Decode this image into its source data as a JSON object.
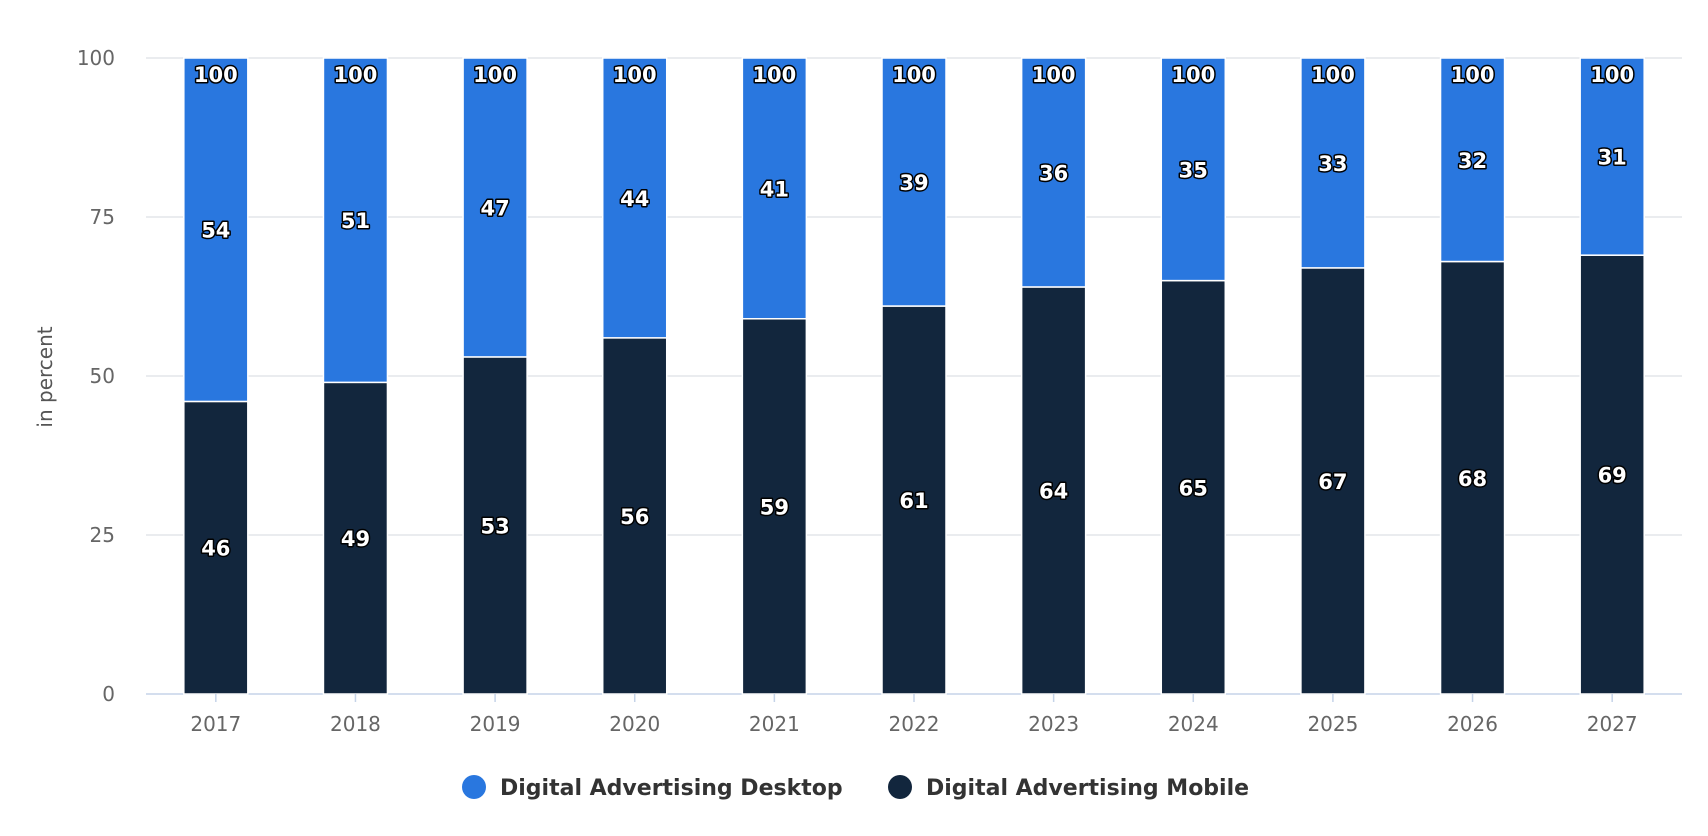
{
  "chart_data": {
    "type": "bar",
    "stacked": true,
    "categories": [
      "2017",
      "2018",
      "2019",
      "2020",
      "2021",
      "2022",
      "2023",
      "2024",
      "2025",
      "2026",
      "2027"
    ],
    "series": [
      {
        "name": "Digital Advertising Mobile",
        "color": "#12263d",
        "values": [
          46,
          49,
          53,
          56,
          59,
          61,
          64,
          65,
          67,
          68,
          69
        ]
      },
      {
        "name": "Digital Advertising Desktop",
        "color": "#2977df",
        "values": [
          54,
          51,
          47,
          44,
          41,
          39,
          36,
          35,
          33,
          32,
          31
        ]
      }
    ],
    "total_labels": [
      "100",
      "100",
      "100",
      "100",
      "100",
      "100",
      "100",
      "100",
      "100",
      "100",
      "100"
    ],
    "title": "",
    "xlabel": "",
    "ylabel": "in percent",
    "ylim": [
      0,
      100
    ],
    "yticks": [
      0,
      25,
      50,
      75,
      100
    ],
    "grid": true,
    "legend": {
      "position": "bottom",
      "entries": [
        {
          "name": "Digital Advertising Desktop",
          "color": "#2977df"
        },
        {
          "name": "Digital Advertising Mobile",
          "color": "#12263d"
        }
      ]
    }
  }
}
